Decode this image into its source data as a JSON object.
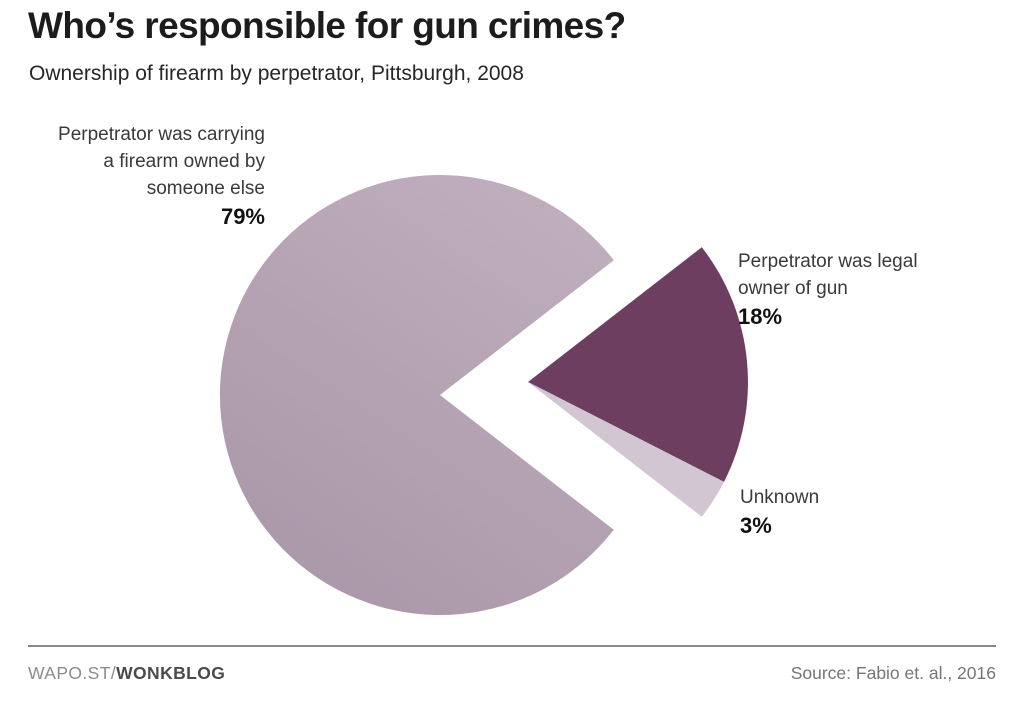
{
  "title": "Who’s responsible for gun crimes?",
  "subtitle": "Ownership of firearm by perpetrator, Pittsburgh, 2008",
  "chart_data": {
    "type": "pie",
    "title": "Who’s responsible for gun crimes?",
    "subtitle": "Ownership of firearm by perpetrator, Pittsburgh, 2008",
    "unit": "percent",
    "legend_position": "none",
    "labels_as_callouts": true,
    "slices": [
      {
        "name": "someone-else",
        "label": "Perpetrator was carrying a firearm owned by someone else",
        "value": 79,
        "color": "#b4a2b2",
        "gradient": [
          "#bfaebd",
          "#a996a8"
        ],
        "exploded": false
      },
      {
        "name": "legal-owner",
        "label": "Perpetrator was legal owner of gun",
        "value": 18,
        "color": "#6e3e60",
        "exploded": true
      },
      {
        "name": "unknown",
        "label": "Unknown",
        "value": 3,
        "color": "#d1c6d1",
        "exploded": true
      }
    ]
  },
  "callouts": {
    "someone_else": {
      "lines": [
        "Perpetrator was carrying",
        "a firearm owned by",
        "someone else"
      ],
      "value": "79%"
    },
    "legal_owner": {
      "lines": [
        "Perpetrator was legal",
        "owner of gun"
      ],
      "value": "18%"
    },
    "unknown": {
      "lines": [
        "Unknown"
      ],
      "value": "3%"
    }
  },
  "footer": {
    "brand_regular": "WAPO.ST/",
    "brand_bold": "WONKBLOG",
    "source": "Source: Fabio et. al., 2016"
  },
  "colors": {
    "background": "#ffffff",
    "title_text": "#1c1c1c",
    "label_text": "#3a3a3a",
    "divider": "#8a8a8a"
  }
}
